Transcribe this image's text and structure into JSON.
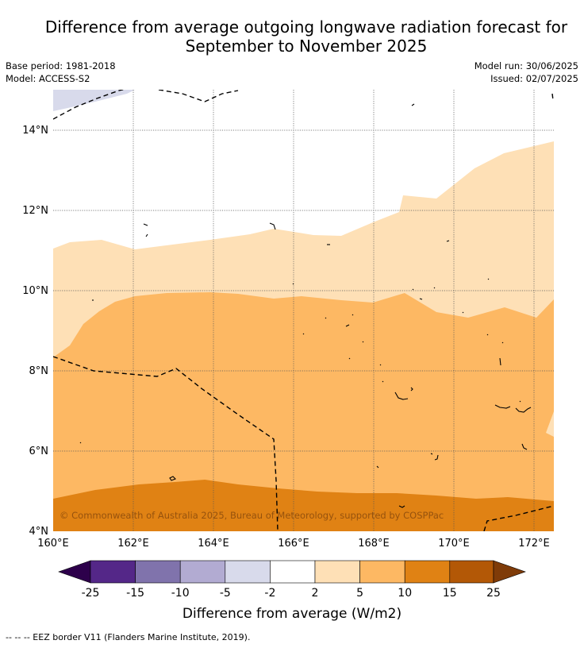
{
  "title": {
    "line1": "Difference from average outgoing longwave radiation forecast for",
    "line2": "September to November 2025"
  },
  "meta": {
    "base_period": "Base period: 1981-2018",
    "model": "Model: ACCESS-S2",
    "model_run": "Model run: 30/06/2025",
    "issued": "Issued: 02/07/2025"
  },
  "axes": {
    "lat_labels": [
      "14°N",
      "12°N",
      "10°N",
      "8°N",
      "6°N",
      "4°N"
    ],
    "lon_labels": [
      "160°E",
      "162°E",
      "164°E",
      "166°E",
      "168°E",
      "170°E",
      "172°E"
    ]
  },
  "copyright": "© Commonwealth of Australia 2025, Bureau of Meteorology, supported by COSPPac",
  "colorbar": {
    "ticks": [
      "-25",
      "-15",
      "-10",
      "-5",
      "-2",
      "2",
      "5",
      "10",
      "15",
      "25"
    ],
    "colors": [
      "#2d004b",
      "#542788",
      "#8073ac",
      "#b2abd2",
      "#d8daeb",
      "#ffffff",
      "#fee0b6",
      "#fdb863",
      "#e08214",
      "#b35806",
      "#7f3b08"
    ],
    "label": "Difference from average (W/m2)"
  },
  "legend_note": "--  --  -- EEZ border V11 (Flanders Marine Institute, 2019)."
}
